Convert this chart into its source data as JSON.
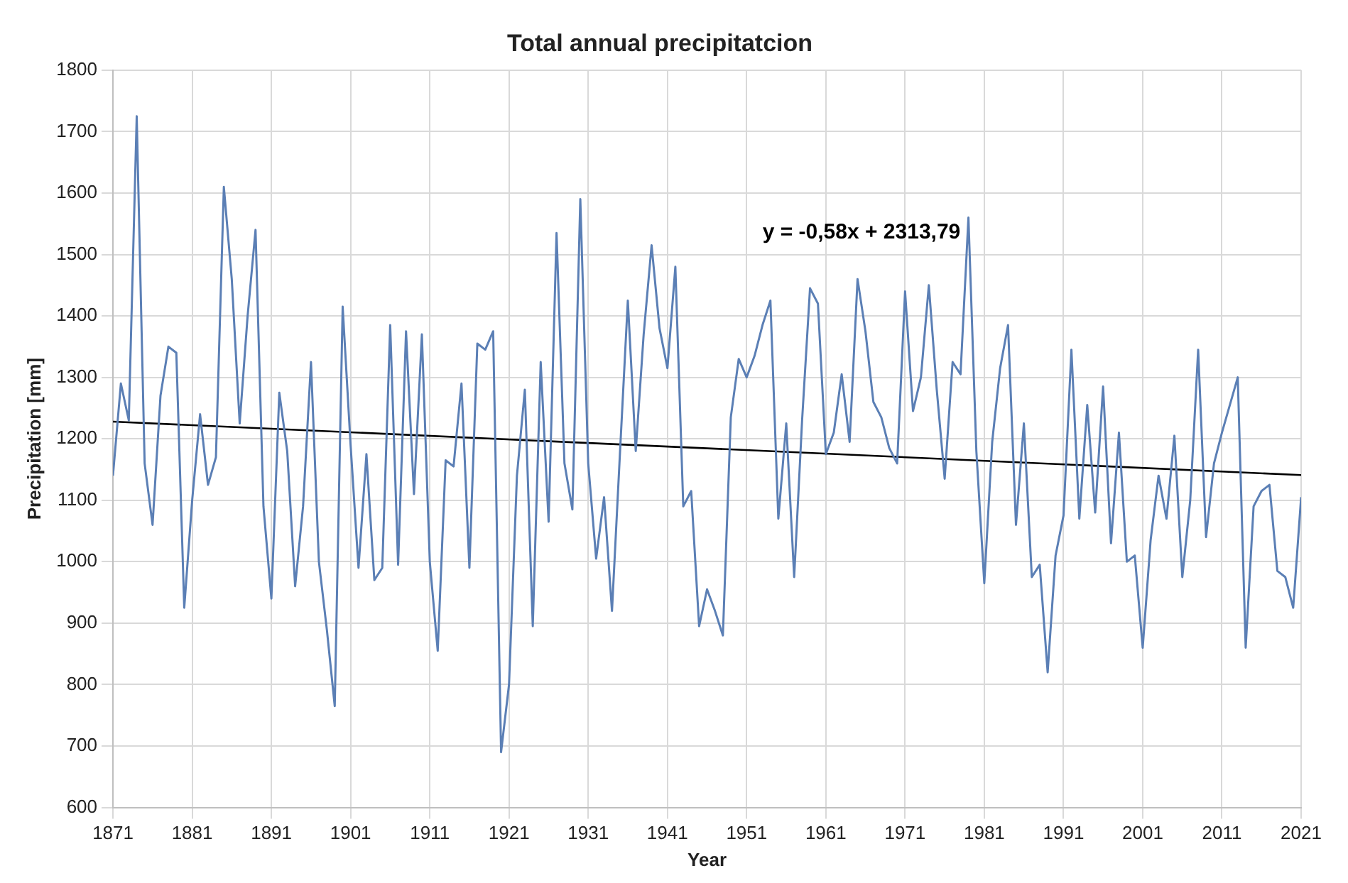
{
  "chart_data": {
    "type": "line",
    "title": "Total annual precipitatcion",
    "xlabel": "Year",
    "ylabel": "Precipitation [mm]",
    "x": [
      1871,
      1872,
      1873,
      1874,
      1875,
      1876,
      1877,
      1878,
      1879,
      1880,
      1881,
      1882,
      1883,
      1884,
      1885,
      1886,
      1887,
      1888,
      1889,
      1890,
      1891,
      1892,
      1893,
      1894,
      1895,
      1896,
      1897,
      1898,
      1899,
      1900,
      1901,
      1902,
      1903,
      1904,
      1905,
      1906,
      1907,
      1908,
      1909,
      1910,
      1911,
      1912,
      1913,
      1914,
      1915,
      1916,
      1917,
      1918,
      1919,
      1920,
      1921,
      1922,
      1923,
      1924,
      1925,
      1926,
      1927,
      1928,
      1929,
      1930,
      1931,
      1932,
      1933,
      1934,
      1935,
      1936,
      1937,
      1938,
      1939,
      1940,
      1941,
      1942,
      1943,
      1944,
      1945,
      1946,
      1947,
      1948,
      1949,
      1950,
      1951,
      1952,
      1953,
      1954,
      1955,
      1956,
      1957,
      1958,
      1959,
      1960,
      1961,
      1962,
      1963,
      1964,
      1965,
      1966,
      1967,
      1968,
      1969,
      1970,
      1971,
      1972,
      1973,
      1974,
      1975,
      1976,
      1977,
      1978,
      1979,
      1980,
      1981,
      1982,
      1983,
      1984,
      1985,
      1986,
      1987,
      1988,
      1989,
      1990,
      1991,
      1992,
      1993,
      1994,
      1995,
      1996,
      1997,
      1998,
      1999,
      2000,
      2001,
      2002,
      2003,
      2004,
      2005,
      2006,
      2007,
      2008,
      2009,
      2010,
      2011,
      2012,
      2013,
      2014,
      2015,
      2016,
      2017,
      2018,
      2019,
      2020,
      2021
    ],
    "series": [
      {
        "color": "#5b7fb5",
        "values": [
          1140,
          1290,
          1230,
          1725,
          1160,
          1060,
          1270,
          1350,
          1340,
          925,
          1100,
          1240,
          1125,
          1170,
          1610,
          1460,
          1225,
          1400,
          1540,
          1090,
          940,
          1275,
          1180,
          960,
          1090,
          1325,
          1000,
          890,
          765,
          1415,
          1190,
          990,
          1175,
          970,
          990,
          1385,
          995,
          1375,
          1110,
          1370,
          1000,
          855,
          1165,
          1155,
          1290,
          990,
          1355,
          1345,
          1375,
          690,
          800,
          1140,
          1280,
          895,
          1325,
          1065,
          1535,
          1160,
          1085,
          1590,
          1160,
          1005,
          1105,
          920,
          1175,
          1425,
          1180,
          1370,
          1515,
          1380,
          1315,
          1480,
          1090,
          1115,
          895,
          955,
          920,
          880,
          1235,
          1330,
          1300,
          1335,
          1385,
          1425,
          1070,
          1225,
          975,
          1230,
          1445,
          1420,
          1175,
          1210,
          1305,
          1195,
          1460,
          1375,
          1260,
          1235,
          1185,
          1160,
          1440,
          1245,
          1300,
          1450,
          1280,
          1135,
          1325,
          1305,
          1560,
          1180,
          965,
          1195,
          1315,
          1385,
          1060,
          1225,
          975,
          995,
          820,
          1010,
          1075,
          1345,
          1070,
          1255,
          1080,
          1285,
          1030,
          1210,
          1000,
          1010,
          860,
          1035,
          1140,
          1070,
          1205,
          975,
          1100,
          1345,
          1040,
          1160,
          1210,
          1255,
          1300,
          860,
          1090,
          1115,
          1125,
          985,
          975,
          925,
          1105
        ]
      },
      {
        "color": "#000000",
        "x": [
          1871,
          2021
        ],
        "values": [
          1228,
          1141
        ]
      }
    ],
    "xlim": [
      1871,
      2021
    ],
    "xticks": [
      1871,
      1881,
      1891,
      1901,
      1911,
      1921,
      1931,
      1941,
      1951,
      1961,
      1971,
      1981,
      1991,
      2001,
      2011,
      2021
    ],
    "ylim": [
      600,
      1800
    ],
    "yticks": [
      600,
      700,
      800,
      900,
      1000,
      1100,
      1200,
      1300,
      1400,
      1500,
      1600,
      1700,
      1800
    ],
    "annotations": [
      "y = -0,58x + 2313,79"
    ],
    "grid": true,
    "legend": false,
    "marker": "none",
    "line_style": "solid"
  }
}
